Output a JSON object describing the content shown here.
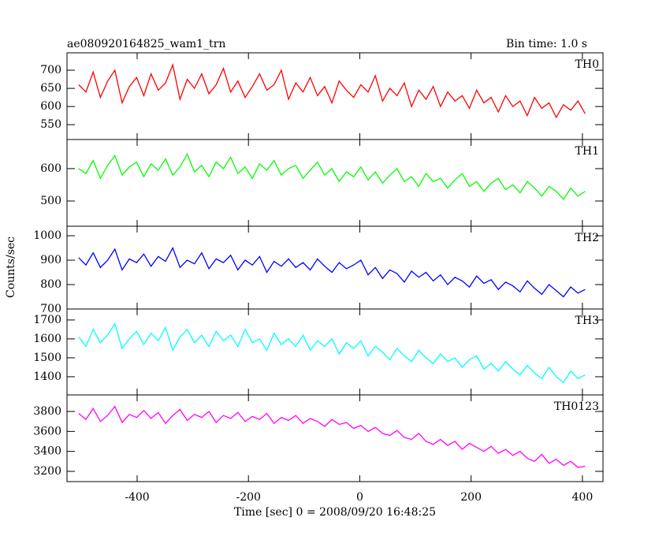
{
  "chart_data": [
    {
      "type": "line",
      "title": "ae080920164825_wam1_trn",
      "subtitle": "Bin time: 1.0 s",
      "xlim": [
        -526,
        437
      ],
      "xticks": [
        -400,
        -200,
        0,
        200,
        400
      ],
      "ylim": [
        509,
        748
      ],
      "yticks": [
        550,
        600,
        650,
        700
      ],
      "x": [
        -505,
        -492,
        -479,
        -466,
        -453,
        -440,
        -427,
        -414,
        -401,
        -388,
        -375,
        -362,
        -349,
        -336,
        -323,
        -310,
        -297,
        -284,
        -271,
        -258,
        -245,
        -232,
        -219,
        -206,
        -193,
        -180,
        -167,
        -154,
        -141,
        -128,
        -115,
        -102,
        -89,
        -76,
        -63,
        -50,
        -37,
        -24,
        -11,
        2,
        15,
        28,
        41,
        54,
        67,
        80,
        93,
        106,
        119,
        132,
        145,
        158,
        171,
        184,
        197,
        210,
        223,
        236,
        249,
        262,
        275,
        288,
        301,
        314,
        327,
        340,
        353,
        366,
        379,
        392,
        405
      ],
      "series": [
        {
          "name": "TH0",
          "color": "#ff0000",
          "values": [
            660,
            640,
            695,
            625,
            670,
            700,
            610,
            655,
            680,
            630,
            690,
            645,
            665,
            715,
            620,
            675,
            650,
            690,
            635,
            660,
            705,
            640,
            670,
            625,
            655,
            690,
            645,
            660,
            700,
            620,
            665,
            640,
            680,
            630,
            655,
            610,
            670,
            645,
            625,
            660,
            640,
            685,
            615,
            650,
            630,
            665,
            600,
            645,
            620,
            655,
            600,
            640,
            615,
            630,
            595,
            645,
            610,
            625,
            585,
            630,
            600,
            615,
            575,
            625,
            595,
            610,
            570,
            605,
            590,
            615,
            580
          ]
        }
      ]
    },
    {
      "type": "line",
      "xlim": [
        -526,
        437
      ],
      "xticks": [
        -400,
        -200,
        0,
        200,
        400
      ],
      "ylim": [
        422,
        690
      ],
      "yticks": [
        500,
        600
      ],
      "x": [
        -505,
        -492,
        -479,
        -466,
        -453,
        -440,
        -427,
        -414,
        -401,
        -388,
        -375,
        -362,
        -349,
        -336,
        -323,
        -310,
        -297,
        -284,
        -271,
        -258,
        -245,
        -232,
        -219,
        -206,
        -193,
        -180,
        -167,
        -154,
        -141,
        -128,
        -115,
        -102,
        -89,
        -76,
        -63,
        -50,
        -37,
        -24,
        -11,
        2,
        15,
        28,
        41,
        54,
        67,
        80,
        93,
        106,
        119,
        132,
        145,
        158,
        171,
        184,
        197,
        210,
        223,
        236,
        249,
        262,
        275,
        288,
        301,
        314,
        327,
        340,
        353,
        366,
        379,
        392,
        405
      ],
      "series": [
        {
          "name": "TH1",
          "color": "#00ff00",
          "values": [
            600,
            585,
            625,
            570,
            610,
            640,
            580,
            605,
            620,
            575,
            615,
            595,
            630,
            580,
            605,
            645,
            590,
            610,
            575,
            620,
            600,
            635,
            585,
            605,
            570,
            615,
            595,
            625,
            580,
            600,
            610,
            570,
            595,
            620,
            580,
            600,
            560,
            590,
            575,
            605,
            565,
            590,
            555,
            580,
            600,
            560,
            575,
            545,
            585,
            560,
            570,
            540,
            565,
            585,
            545,
            560,
            530,
            555,
            570,
            535,
            550,
            525,
            560,
            540,
            515,
            545,
            530,
            505,
            540,
            515,
            530
          ]
        }
      ]
    },
    {
      "type": "line",
      "ylabel": "Counts/sec",
      "xlim": [
        -526,
        437
      ],
      "xticks": [
        -400,
        -200,
        0,
        200,
        400
      ],
      "ylim": [
        700,
        1039
      ],
      "yticks": [
        700,
        800,
        900,
        1000
      ],
      "x": [
        -505,
        -492,
        -479,
        -466,
        -453,
        -440,
        -427,
        -414,
        -401,
        -388,
        -375,
        -362,
        -349,
        -336,
        -323,
        -310,
        -297,
        -284,
        -271,
        -258,
        -245,
        -232,
        -219,
        -206,
        -193,
        -180,
        -167,
        -154,
        -141,
        -128,
        -115,
        -102,
        -89,
        -76,
        -63,
        -50,
        -37,
        -24,
        -11,
        2,
        15,
        28,
        41,
        54,
        67,
        80,
        93,
        106,
        119,
        132,
        145,
        158,
        171,
        184,
        197,
        210,
        223,
        236,
        249,
        262,
        275,
        288,
        301,
        314,
        327,
        340,
        353,
        366,
        379,
        392,
        405
      ],
      "series": [
        {
          "name": "TH2",
          "color": "#0000ff",
          "values": [
            910,
            880,
            930,
            870,
            900,
            945,
            860,
            905,
            890,
            925,
            875,
            915,
            895,
            950,
            870,
            900,
            885,
            930,
            865,
            905,
            890,
            920,
            860,
            900,
            880,
            915,
            850,
            895,
            875,
            905,
            870,
            890,
            860,
            905,
            875,
            850,
            890,
            865,
            880,
            900,
            840,
            870,
            825,
            860,
            845,
            810,
            855,
            830,
            850,
            815,
            840,
            800,
            830,
            815,
            790,
            835,
            805,
            820,
            780,
            810,
            795,
            770,
            815,
            785,
            760,
            800,
            775,
            750,
            790,
            765,
            780
          ]
        }
      ]
    },
    {
      "type": "line",
      "xlim": [
        -526,
        437
      ],
      "xticks": [
        -400,
        -200,
        0,
        200,
        400
      ],
      "ylim": [
        1304,
        1758
      ],
      "yticks": [
        1400,
        1500,
        1600,
        1700
      ],
      "x": [
        -505,
        -492,
        -479,
        -466,
        -453,
        -440,
        -427,
        -414,
        -401,
        -388,
        -375,
        -362,
        -349,
        -336,
        -323,
        -310,
        -297,
        -284,
        -271,
        -258,
        -245,
        -232,
        -219,
        -206,
        -193,
        -180,
        -167,
        -154,
        -141,
        -128,
        -115,
        -102,
        -89,
        -76,
        -63,
        -50,
        -37,
        -24,
        -11,
        2,
        15,
        28,
        41,
        54,
        67,
        80,
        93,
        106,
        119,
        132,
        145,
        158,
        171,
        184,
        197,
        210,
        223,
        236,
        249,
        262,
        275,
        288,
        301,
        314,
        327,
        340,
        353,
        366,
        379,
        392,
        405
      ],
      "series": [
        {
          "name": "TH3",
          "color": "#00ffff",
          "values": [
            1610,
            1560,
            1650,
            1580,
            1620,
            1680,
            1550,
            1600,
            1640,
            1570,
            1630,
            1590,
            1660,
            1540,
            1610,
            1650,
            1580,
            1620,
            1560,
            1640,
            1590,
            1620,
            1560,
            1650,
            1580,
            1600,
            1540,
            1630,
            1570,
            1600,
            1560,
            1620,
            1540,
            1590,
            1560,
            1600,
            1520,
            1580,
            1550,
            1590,
            1510,
            1560,
            1530,
            1490,
            1550,
            1510,
            1480,
            1540,
            1500,
            1470,
            1520,
            1480,
            1500,
            1450,
            1490,
            1510,
            1440,
            1470,
            1430,
            1480,
            1440,
            1410,
            1460,
            1420,
            1390,
            1450,
            1400,
            1370,
            1430,
            1390,
            1410
          ]
        }
      ]
    },
    {
      "type": "line",
      "xlabel": "Time [sec] 0 = 2008/09/20 16:48:25",
      "xlim": [
        -526,
        437
      ],
      "xticks": [
        -400,
        -200,
        0,
        200,
        400
      ],
      "ylim": [
        3097,
        3966
      ],
      "yticks": [
        3200,
        3400,
        3600,
        3800
      ],
      "x": [
        -505,
        -492,
        -479,
        -466,
        -453,
        -440,
        -427,
        -414,
        -401,
        -388,
        -375,
        -362,
        -349,
        -336,
        -323,
        -310,
        -297,
        -284,
        -271,
        -258,
        -245,
        -232,
        -219,
        -206,
        -193,
        -180,
        -167,
        -154,
        -141,
        -128,
        -115,
        -102,
        -89,
        -76,
        -63,
        -50,
        -37,
        -24,
        -11,
        2,
        15,
        28,
        41,
        54,
        67,
        80,
        93,
        106,
        119,
        132,
        145,
        158,
        171,
        184,
        197,
        210,
        223,
        236,
        249,
        262,
        275,
        288,
        301,
        314,
        327,
        340,
        353,
        366,
        379,
        392,
        405
      ],
      "series": [
        {
          "name": "TH0123",
          "color": "#ff00ff",
          "values": [
            3780,
            3720,
            3830,
            3700,
            3760,
            3850,
            3690,
            3770,
            3740,
            3810,
            3730,
            3790,
            3680,
            3760,
            3820,
            3710,
            3770,
            3740,
            3800,
            3690,
            3760,
            3730,
            3790,
            3700,
            3750,
            3720,
            3780,
            3680,
            3740,
            3710,
            3760,
            3680,
            3730,
            3700,
            3650,
            3720,
            3670,
            3690,
            3630,
            3660,
            3600,
            3640,
            3580,
            3560,
            3610,
            3540,
            3520,
            3580,
            3500,
            3470,
            3520,
            3460,
            3500,
            3420,
            3480,
            3440,
            3400,
            3450,
            3380,
            3420,
            3360,
            3400,
            3330,
            3300,
            3370,
            3280,
            3320,
            3260,
            3300,
            3240,
            3250
          ]
        }
      ]
    }
  ]
}
